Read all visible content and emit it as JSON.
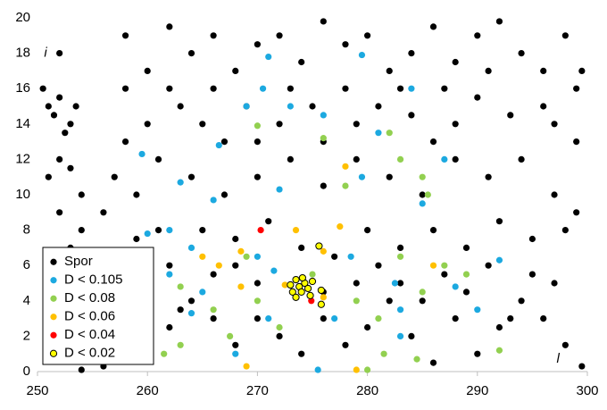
{
  "chart_data": {
    "type": "scatter",
    "xlim": [
      250,
      300
    ],
    "ylim": [
      0,
      20
    ],
    "xticks": [
      250,
      260,
      270,
      280,
      290,
      300
    ],
    "yticks": [
      0,
      2,
      4,
      6,
      8,
      10,
      12,
      14,
      16,
      18,
      20
    ],
    "grid": false,
    "legend": "lower left",
    "annotations": [
      {
        "text": "i",
        "x": 250.6,
        "y": 18
      },
      {
        "text": "l",
        "x": 297.2,
        "y": 0.7
      }
    ],
    "series": [
      {
        "name": "Spor",
        "color": "#000000",
        "x": [
          250.5,
          251,
          251.5,
          252,
          252.5,
          253,
          253.5,
          252,
          251,
          253,
          254,
          252,
          253,
          255,
          251,
          256,
          257,
          256,
          254,
          258,
          260,
          262,
          264,
          266,
          268,
          270,
          272,
          274,
          276,
          278,
          280,
          282,
          284,
          286,
          288,
          290,
          292,
          294,
          296,
          298,
          299.5,
          299,
          296,
          293,
          290,
          288,
          286,
          284,
          281,
          278,
          275,
          272,
          269,
          266,
          263,
          260,
          258,
          257,
          259,
          261,
          264,
          267,
          270,
          273,
          276,
          279,
          282,
          285,
          288,
          291,
          294,
          297,
          299,
          298,
          295,
          292,
          289,
          286,
          283,
          280,
          277,
          274,
          271,
          268,
          265,
          262,
          259,
          257,
          258,
          260,
          262,
          264,
          266,
          268,
          270,
          272,
          274,
          276,
          278,
          280,
          282,
          284,
          286,
          288,
          290,
          292,
          294,
          296,
          298,
          299.5,
          297,
          295,
          293,
          291,
          289,
          287,
          285,
          283,
          281,
          279,
          276,
          270,
          268,
          266,
          263,
          261,
          254,
          256,
          252,
          299,
          297,
          291,
          287,
          283,
          279,
          276,
          273,
          270,
          267,
          265,
          262,
          258
        ],
        "y": [
          16,
          15,
          14.5,
          15.5,
          13.5,
          14,
          15,
          12,
          11,
          11.5,
          10,
          9,
          7,
          6.5,
          5,
          4,
          2,
          0.3,
          0.1,
          19,
          17,
          19.5,
          18,
          19,
          17,
          18.5,
          19,
          17.5,
          19.8,
          18.5,
          19,
          17,
          18,
          19.5,
          17.5,
          19,
          19.8,
          18,
          17,
          19,
          17,
          16,
          15,
          14.5,
          15.5,
          14,
          13,
          14.5,
          15,
          16,
          15,
          14,
          15,
          16,
          15,
          14,
          13,
          11,
          10,
          12,
          11,
          10,
          11,
          12,
          10.5,
          12,
          11,
          10,
          12,
          11,
          12,
          10,
          9,
          8,
          7.5,
          8.5,
          7,
          8,
          7,
          8,
          6.5,
          7,
          8.5,
          7.5,
          8,
          6,
          7.5,
          5,
          3,
          1,
          2.5,
          4,
          3,
          1.5,
          3,
          2,
          1,
          3,
          1.5,
          2.5,
          4,
          2,
          0.5,
          3,
          1,
          2.5,
          4,
          3,
          1.5,
          0.3,
          5,
          5.5,
          3,
          6,
          4.5,
          5.5,
          4,
          5,
          6,
          5,
          4.5,
          5,
          6,
          5.5,
          3.5,
          8,
          8,
          9,
          18,
          13,
          14,
          17,
          16,
          16,
          14,
          13,
          16,
          13,
          13,
          14,
          16,
          16
        ]
      },
      {
        "name": "D < 0.105",
        "color": "#1ca9e0",
        "x": [
          271,
          279.5,
          284,
          270.5,
          273,
          276,
          269,
          281,
          259.5,
          266.5,
          287,
          279.5,
          263,
          266,
          272,
          285,
          262,
          264,
          260,
          270,
          271.5,
          278.5,
          292,
          262,
          265,
          282.5,
          288,
          264,
          271,
          277,
          283,
          290,
          268,
          275.5,
          283
        ],
        "y": [
          17.8,
          17.9,
          16,
          16,
          15,
          14.5,
          15,
          13.5,
          12.3,
          12.8,
          12,
          11,
          10.7,
          9.7,
          10.3,
          9.5,
          8,
          7,
          7.8,
          6.5,
          5.7,
          6.5,
          6.3,
          5.5,
          4.5,
          5,
          4.8,
          3.3,
          3,
          3,
          2,
          3.5,
          1,
          0.1,
          3.5
        ]
      },
      {
        "name": "D < 0.08",
        "color": "#92d050",
        "x": [
          270,
          276,
          282,
          283,
          285,
          278,
          285.5,
          283,
          287,
          269,
          275,
          270,
          263,
          266,
          272,
          267.5,
          261.5,
          263,
          279,
          281,
          285,
          289,
          281.5,
          284.5,
          292,
          280
        ],
        "y": [
          13.9,
          13.2,
          13.5,
          12,
          11,
          10.5,
          10,
          6.5,
          6,
          6.5,
          5.5,
          4,
          4.8,
          3.5,
          2.5,
          2,
          1,
          1.5,
          4,
          3,
          4.5,
          5.5,
          1,
          0.7,
          1.2,
          0.1
        ]
      },
      {
        "name": "D < 0.06",
        "color": "#ffc000",
        "x": [
          278,
          277.5,
          273.5,
          265,
          266.5,
          268.5,
          276,
          286,
          268.5,
          272.5,
          276,
          269,
          279
        ],
        "y": [
          11.6,
          8.2,
          8,
          6.5,
          6,
          6.8,
          6.8,
          6,
          4.8,
          4.9,
          4.2,
          0.3,
          0.1
        ]
      },
      {
        "name": "D < 0.04",
        "color": "#ff0000",
        "x": [
          270.3,
          274.9
        ],
        "y": [
          8,
          4
        ]
      },
      {
        "name": "D < 0.02",
        "color": "#ffff00",
        "edgecolor": "#000000",
        "x": [
          273.5,
          273.8,
          274,
          274.3,
          274.6,
          273.2,
          274.8,
          273.5,
          275,
          275.8,
          275.8,
          275.6,
          274.1,
          273
        ],
        "y": [
          5.2,
          4.8,
          4.5,
          5,
          4.7,
          4.5,
          4.3,
          4.2,
          5.1,
          4.6,
          3.8,
          7.1,
          5.3,
          4.9
        ]
      }
    ]
  }
}
